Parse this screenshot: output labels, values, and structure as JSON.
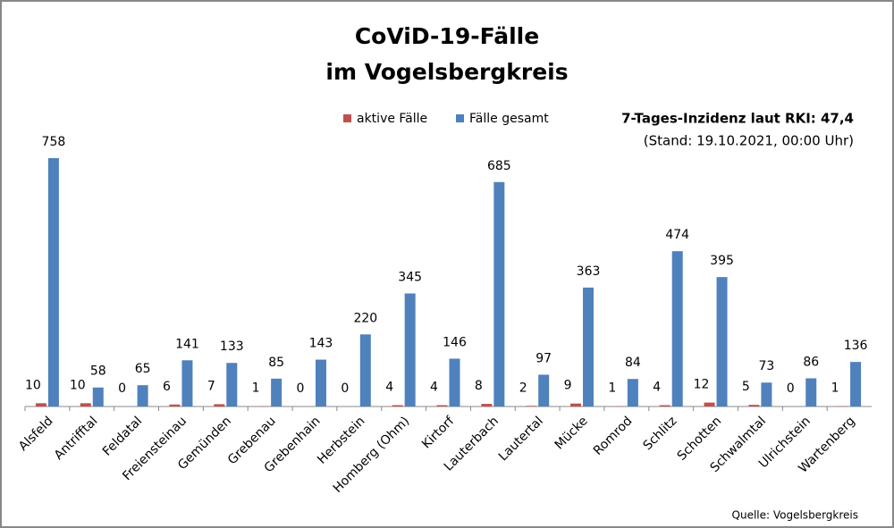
{
  "chart_data": {
    "type": "bar",
    "title": [
      "CoViD-19-Fälle",
      "im Vogelsbergkreis"
    ],
    "annotations": [
      "7-Tages-Inzidenz laut RKI: 47,4",
      "(Stand: 19.10.2021, 00:00 Uhr)"
    ],
    "source": "Quelle: Vogelsbergkreis",
    "categories": [
      "Alsfeld",
      "Antrifftal",
      "Feldatal",
      "Freiensteinau",
      "Gemünden",
      "Grebenau",
      "Grebenhain",
      "Herbstein",
      "Homberg (Ohm)",
      "Kirtorf",
      "Lauterbach",
      "Lautertal",
      "Mücke",
      "Romrod",
      "Schlitz",
      "Schotten",
      "Schwalmtal",
      "Ulrichstein",
      "Wartenberg"
    ],
    "series": [
      {
        "name": "aktive Fälle",
        "color": "#c0504d",
        "values": [
          10,
          10,
          0,
          6,
          7,
          1,
          0,
          0,
          4,
          4,
          8,
          2,
          9,
          1,
          4,
          12,
          5,
          0,
          1
        ]
      },
      {
        "name": "Fälle gesamt",
        "color": "#4f81bd",
        "values": [
          758,
          58,
          65,
          141,
          133,
          85,
          143,
          220,
          345,
          146,
          685,
          97,
          363,
          84,
          474,
          395,
          73,
          86,
          136
        ]
      }
    ]
  }
}
